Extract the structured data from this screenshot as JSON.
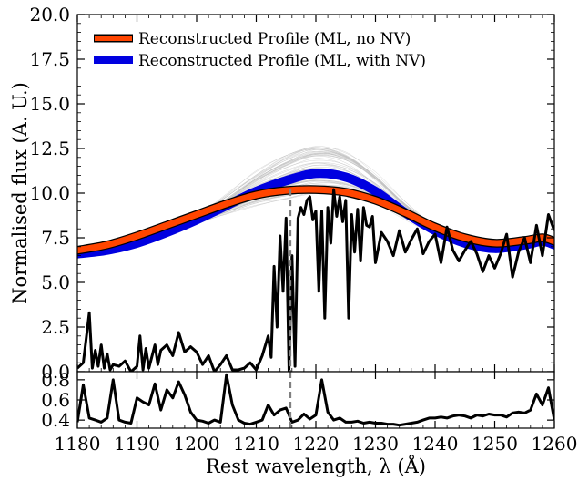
{
  "chart_data": [
    {
      "type": "line",
      "title": "",
      "xlabel": "",
      "ylabel": "Normalised flux (A. U.)",
      "xlim": [
        1180,
        1260
      ],
      "ylim": [
        0,
        20
      ],
      "x_ticks": [
        "1180",
        "1190",
        "1200",
        "1210",
        "1220",
        "1230",
        "1240",
        "1250",
        "1260"
      ],
      "y_ticks": [
        "0.0",
        "2.5",
        "5.0",
        "7.5",
        "10.0",
        "12.5",
        "15.0",
        "17.5",
        "20.0"
      ],
      "legend_position": "top-left",
      "legend": [
        {
          "label": "Reconstructed Profile (ML,  no NV)",
          "color": "#ff4500"
        },
        {
          "label": "Reconstructed Profile (ML,  with NV)",
          "color": "#0000e0"
        }
      ],
      "vertical_line": {
        "x": 1215.67,
        "style": "dashed",
        "color": "#808080"
      },
      "series": [
        {
          "name": "Reconstructed Profile (ML,  no NV)",
          "color": "#ff4500",
          "x": [
            1180,
            1185,
            1190,
            1195,
            1200,
            1205,
            1210,
            1215,
            1220,
            1225,
            1230,
            1235,
            1240,
            1245,
            1250,
            1255,
            1258,
            1260
          ],
          "y": [
            6.8,
            7.1,
            7.6,
            8.2,
            8.8,
            9.4,
            9.9,
            10.15,
            10.2,
            10.05,
            9.6,
            8.9,
            8.1,
            7.5,
            7.2,
            7.35,
            7.5,
            7.3
          ]
        },
        {
          "name": "Reconstructed Profile (ML,  with NV)",
          "color": "#0000e0",
          "x": [
            1180,
            1185,
            1190,
            1195,
            1200,
            1205,
            1210,
            1215,
            1220,
            1225,
            1230,
            1235,
            1240,
            1245,
            1250,
            1255,
            1258,
            1260
          ],
          "y": [
            6.6,
            6.8,
            7.2,
            7.8,
            8.5,
            9.3,
            10.1,
            10.7,
            11.1,
            10.9,
            10.1,
            8.9,
            7.9,
            7.2,
            6.9,
            7.1,
            7.3,
            7.1
          ]
        },
        {
          "name": "",
          "color": "#000000",
          "x": [
            1180,
            1181,
            1182,
            1182.5,
            1183,
            1183.5,
            1184,
            1184.5,
            1185,
            1185.5,
            1186,
            1187,
            1188,
            1189,
            1190,
            1190.5,
            1191,
            1191.5,
            1192,
            1193,
            1193.5,
            1194,
            1195,
            1196,
            1197,
            1198,
            1199,
            1200,
            1201,
            1202,
            1203,
            1204,
            1205,
            1206,
            1207,
            1208,
            1209,
            1210,
            1211,
            1212,
            1212.5,
            1213,
            1213.5,
            1214,
            1214.5,
            1215,
            1215.5,
            1216,
            1216.5,
            1217,
            1217.5,
            1218,
            1218.5,
            1219,
            1219.5,
            1220,
            1220.5,
            1221,
            1221.5,
            1222,
            1222.5,
            1223,
            1223.5,
            1224,
            1224.5,
            1225,
            1225.5,
            1226,
            1226.5,
            1227,
            1227.5,
            1228,
            1228.5,
            1229,
            1229.5,
            1230,
            1231,
            1232,
            1233,
            1234,
            1235,
            1236,
            1237,
            1238,
            1239,
            1240,
            1241,
            1242,
            1243,
            1244,
            1245,
            1246,
            1247,
            1248,
            1249,
            1250,
            1251,
            1252,
            1253,
            1254,
            1255,
            1256,
            1257,
            1258,
            1259,
            1260
          ],
          "y": [
            0.2,
            0.5,
            3.3,
            0.2,
            1.2,
            0.3,
            1.5,
            0.2,
            1.0,
            0.1,
            0.4,
            0.3,
            0.6,
            0.0,
            0.3,
            2.0,
            0.1,
            1.3,
            0.2,
            1.5,
            0.4,
            1.2,
            1.5,
            0.9,
            2.2,
            1.1,
            1.4,
            1.1,
            0.4,
            0.9,
            0.0,
            0.4,
            0.9,
            0.1,
            0.1,
            0.2,
            0.5,
            0.1,
            0.9,
            2.0,
            0.8,
            5.9,
            2.5,
            7.6,
            4.5,
            8.6,
            0.0,
            6.5,
            0.3,
            8.6,
            9.2,
            8.8,
            9.6,
            9.8,
            8.5,
            9.0,
            4.5,
            9.0,
            3.0,
            9.2,
            7.2,
            10.2,
            8.7,
            9.8,
            8.4,
            9.6,
            3.0,
            8.8,
            6.7,
            9.1,
            6.2,
            9.2,
            8.2,
            8.1,
            8.7,
            6.1,
            7.8,
            7.3,
            6.5,
            7.9,
            6.7,
            7.4,
            8.0,
            6.6,
            7.3,
            7.7,
            6.1,
            8.1,
            6.8,
            6.2,
            6.8,
            7.3,
            6.6,
            5.6,
            6.5,
            5.8,
            6.6,
            7.7,
            5.3,
            6.7,
            7.5,
            6.1,
            8.2,
            6.5,
            8.8,
            7.9
          ]
        }
      ]
    },
    {
      "type": "line",
      "title": "",
      "xlabel": "Rest wavelength, λ (Å)",
      "ylabel": "",
      "xlim": [
        1180,
        1260
      ],
      "ylim": [
        0.32,
        0.88
      ],
      "x_ticks": [
        "1180",
        "1190",
        "1200",
        "1210",
        "1220",
        "1230",
        "1240",
        "1250",
        "1260"
      ],
      "y_ticks": [
        "0.4",
        "0.6",
        "0.8"
      ],
      "vertical_line": {
        "x": 1215.67,
        "style": "dashed",
        "color": "#808080"
      },
      "series": [
        {
          "name": "",
          "color": "#000000",
          "x": [
            1180,
            1181,
            1182,
            1183,
            1184,
            1185,
            1186,
            1187,
            1188,
            1189,
            1190,
            1191,
            1192,
            1193,
            1194,
            1195,
            1196,
            1197,
            1198,
            1199,
            1200,
            1201,
            1202,
            1203,
            1204,
            1205,
            1206,
            1207,
            1208,
            1209,
            1210,
            1211,
            1212,
            1213,
            1214,
            1215,
            1216,
            1217,
            1218,
            1219,
            1220,
            1221,
            1222,
            1223,
            1224,
            1225,
            1226,
            1227,
            1228,
            1229,
            1230,
            1231,
            1232,
            1233,
            1234,
            1235,
            1236,
            1237,
            1238,
            1239,
            1240,
            1241,
            1242,
            1243,
            1244,
            1245,
            1246,
            1247,
            1248,
            1249,
            1250,
            1251,
            1252,
            1253,
            1254,
            1255,
            1256,
            1257,
            1258,
            1259,
            1260
          ],
          "y": [
            0.38,
            0.75,
            0.42,
            0.4,
            0.38,
            0.42,
            0.8,
            0.4,
            0.38,
            0.37,
            0.62,
            0.58,
            0.55,
            0.76,
            0.5,
            0.7,
            0.62,
            0.78,
            0.65,
            0.48,
            0.4,
            0.39,
            0.37,
            0.4,
            0.38,
            0.85,
            0.55,
            0.4,
            0.37,
            0.36,
            0.38,
            0.4,
            0.55,
            0.45,
            0.5,
            0.52,
            0.38,
            0.4,
            0.46,
            0.41,
            0.45,
            0.8,
            0.48,
            0.4,
            0.42,
            0.38,
            0.38,
            0.39,
            0.37,
            0.38,
            0.37,
            0.37,
            0.36,
            0.36,
            0.35,
            0.36,
            0.37,
            0.38,
            0.4,
            0.42,
            0.42,
            0.43,
            0.42,
            0.44,
            0.45,
            0.44,
            0.42,
            0.45,
            0.44,
            0.46,
            0.45,
            0.45,
            0.43,
            0.47,
            0.48,
            0.47,
            0.5,
            0.66,
            0.55,
            0.72,
            0.4
          ]
        }
      ]
    }
  ]
}
